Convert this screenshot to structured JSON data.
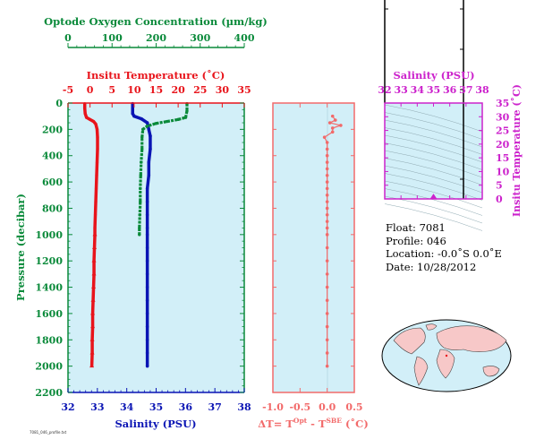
{
  "colors": {
    "oxygen": "#0a8a3a",
    "temperature": "#e8141b",
    "salinity": "#0a14b4",
    "difference": "#f26a6a",
    "panel_bg": "#d2eff8",
    "ts_axis": "#cc22cc",
    "ts_panel_bg": "#d2eff8"
  },
  "main_profile": {
    "oxygen_axis": {
      "label": "Optode Oxygen Concentration (µm/kg)",
      "ticks": [
        "0",
        "100",
        "200",
        "300",
        "400"
      ],
      "min": 0,
      "max": 400
    },
    "temperature_axis": {
      "label": "Insitu Temperature (˚C)",
      "ticks": [
        "-5",
        "0",
        "5",
        "10",
        "15",
        "20",
        "25",
        "30",
        "35"
      ],
      "min": -5,
      "max": 35
    },
    "pressure_axis": {
      "label": "Pressure (decibar)",
      "ticks": [
        "0",
        "200",
        "400",
        "600",
        "800",
        "1000",
        "1200",
        "1400",
        "1600",
        "1800",
        "2000",
        "2200"
      ],
      "min": 0,
      "max": 2200
    },
    "salinity_axis": {
      "label": "Salinity (PSU)",
      "ticks": [
        "32",
        "33",
        "34",
        "35",
        "36",
        "37",
        "38"
      ],
      "min": 32,
      "max": 38
    }
  },
  "difference_panel": {
    "axis_label": "ΔT= T",
    "sup1": "Opt",
    "mid": " - T",
    "sup2": "SBE",
    "unit": " (˚C)",
    "ticks": [
      "-1.0",
      "-0.5",
      "0.0",
      "0.5"
    ],
    "min": -1.0,
    "max": 0.5
  },
  "ts_panel": {
    "salinity_label": "Salinity (PSU)",
    "salinity_ticks": [
      "32",
      "33",
      "34",
      "35",
      "36",
      "37",
      "38"
    ],
    "temperature_label": "Insitu Temperature (˚C)",
    "temperature_ticks": [
      "0",
      "5",
      "10",
      "15",
      "20",
      "25",
      "30",
      "35"
    ]
  },
  "float_info": {
    "float": "Float:  7081",
    "profile": "Profile:  046",
    "location": "Location:  -0.0˚S   0.0˚E",
    "date": "Date:  10/28/2012"
  },
  "footer_text": "7081_046_profile.txt",
  "chart_data": [
    {
      "type": "line",
      "name": "temperature profile",
      "x_units": "Insitu Temperature (˚C)",
      "y_units": "Pressure (decibar)",
      "points": [
        [
          -1.2,
          5
        ],
        [
          -1.2,
          40
        ],
        [
          -1.1,
          80
        ],
        [
          -0.8,
          110
        ],
        [
          0,
          125
        ],
        [
          0.8,
          140
        ],
        [
          1.3,
          160
        ],
        [
          1.6,
          200
        ],
        [
          1.7,
          260
        ],
        [
          1.7,
          350
        ],
        [
          1.6,
          450
        ],
        [
          1.5,
          550
        ],
        [
          1.4,
          650
        ],
        [
          1.3,
          750
        ],
        [
          1.2,
          850
        ],
        [
          1.1,
          950
        ],
        [
          1.1,
          1000
        ],
        [
          1.0,
          1100
        ],
        [
          0.9,
          1200
        ],
        [
          0.9,
          1300
        ],
        [
          0.8,
          1400
        ],
        [
          0.7,
          1500
        ],
        [
          0.6,
          1600
        ],
        [
          0.6,
          1700
        ],
        [
          0.5,
          1800
        ],
        [
          0.5,
          1900
        ],
        [
          0.4,
          2000
        ]
      ]
    },
    {
      "type": "line",
      "name": "salinity profile",
      "x_units": "Salinity (PSU)",
      "y_units": "Pressure (decibar)",
      "points": [
        [
          34.2,
          5
        ],
        [
          34.2,
          40
        ],
        [
          34.2,
          80
        ],
        [
          34.25,
          100
        ],
        [
          34.5,
          120
        ],
        [
          34.7,
          150
        ],
        [
          34.75,
          200
        ],
        [
          34.8,
          250
        ],
        [
          34.8,
          350
        ],
        [
          34.75,
          450
        ],
        [
          34.75,
          550
        ],
        [
          34.7,
          650
        ],
        [
          34.7,
          750
        ],
        [
          34.7,
          850
        ],
        [
          34.7,
          950
        ],
        [
          34.7,
          1000
        ],
        [
          34.7,
          1100
        ],
        [
          34.7,
          1200
        ],
        [
          34.7,
          1300
        ],
        [
          34.7,
          1400
        ],
        [
          34.7,
          1500
        ],
        [
          34.7,
          1600
        ],
        [
          34.7,
          1700
        ],
        [
          34.7,
          1800
        ],
        [
          34.7,
          1900
        ],
        [
          34.7,
          2000
        ]
      ]
    },
    {
      "type": "line",
      "name": "oxygen profile",
      "x_units": "Optode Oxygen Concentration (µm/kg)",
      "y_units": "Pressure (decibar)",
      "points": [
        [
          270,
          5
        ],
        [
          270,
          60
        ],
        [
          267,
          110
        ],
        [
          250,
          125
        ],
        [
          225,
          140
        ],
        [
          200,
          155
        ],
        [
          180,
          175
        ],
        [
          170,
          200
        ],
        [
          168,
          260
        ],
        [
          168,
          350
        ],
        [
          166,
          450
        ],
        [
          165,
          550
        ],
        [
          164,
          650
        ],
        [
          164,
          750
        ],
        [
          163,
          850
        ],
        [
          162,
          950
        ],
        [
          162,
          1000
        ]
      ]
    },
    {
      "type": "scatter",
      "name": "temperature difference",
      "x_units": "ΔT (˚C)",
      "y_units": "Pressure (decibar)",
      "points": [
        [
          0.1,
          100
        ],
        [
          0.15,
          130
        ],
        [
          0.05,
          150
        ],
        [
          0.25,
          170
        ],
        [
          0.1,
          190
        ],
        [
          0.1,
          220
        ],
        [
          -0.05,
          260
        ],
        [
          0,
          300
        ],
        [
          0,
          350
        ],
        [
          0,
          400
        ],
        [
          0,
          450
        ],
        [
          0,
          500
        ],
        [
          0,
          550
        ],
        [
          0,
          600
        ],
        [
          0,
          650
        ],
        [
          0,
          700
        ],
        [
          0,
          750
        ],
        [
          0,
          800
        ],
        [
          0,
          850
        ],
        [
          0,
          900
        ],
        [
          0,
          950
        ],
        [
          0,
          1000
        ],
        [
          0,
          1100
        ],
        [
          0,
          1200
        ],
        [
          0,
          1300
        ],
        [
          0,
          1400
        ],
        [
          0,
          1500
        ],
        [
          0,
          1600
        ],
        [
          0,
          1700
        ],
        [
          0,
          1800
        ],
        [
          0,
          1900
        ],
        [
          0,
          2000
        ]
      ]
    },
    {
      "type": "scatter",
      "name": "T-S",
      "x_units": "Salinity (PSU)",
      "y_units": "Insitu Temperature (˚C)",
      "points": [
        [
          35.0,
          0.3
        ]
      ]
    }
  ]
}
